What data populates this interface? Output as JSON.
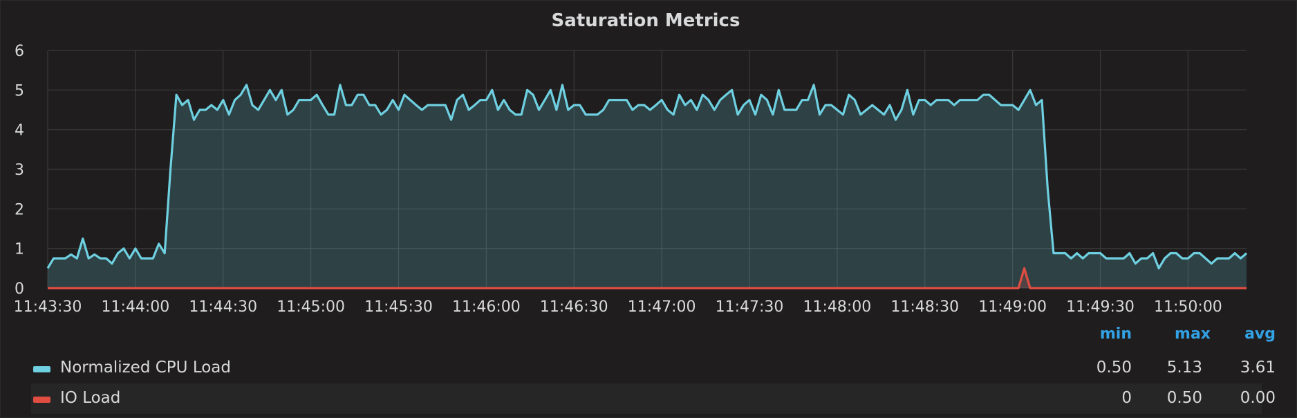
{
  "panel": {
    "title": "Saturation Metrics"
  },
  "legend": {
    "headers": {
      "min": "min",
      "max": "max",
      "avg": "avg"
    },
    "rows": [
      {
        "name": "Normalized CPU Load",
        "color": "#6ed0e0",
        "min": "0.50",
        "max": "5.13",
        "avg": "3.61"
      },
      {
        "name": "IO Load",
        "color": "#e24d42",
        "min": "0",
        "max": "0.50",
        "avg": "0.00"
      }
    ]
  },
  "chart_data": {
    "type": "area",
    "title": "Saturation Metrics",
    "xlabel": "",
    "ylabel": "",
    "ylim": [
      0,
      6
    ],
    "yticks": [
      "0",
      "1",
      "2",
      "3",
      "4",
      "5",
      "6"
    ],
    "xlim": [
      "11:43:30",
      "11:50:20"
    ],
    "xticks": [
      "11:43:30",
      "11:44:00",
      "11:44:30",
      "11:45:00",
      "11:45:30",
      "11:46:00",
      "11:46:30",
      "11:47:00",
      "11:47:30",
      "11:48:00",
      "11:48:30",
      "11:49:00",
      "11:49:30",
      "11:50:00"
    ],
    "grid": true,
    "legend_position": "bottom",
    "series": [
      {
        "name": "Normalized CPU Load",
        "color": "#6ed0e0",
        "fill": true,
        "points": [
          [
            "11:43:30",
            0.5
          ],
          [
            "11:43:32",
            0.75
          ],
          [
            "11:43:34",
            0.75
          ],
          [
            "11:43:36",
            0.75
          ],
          [
            "11:43:38",
            0.85
          ],
          [
            "11:43:40",
            0.75
          ],
          [
            "11:43:42",
            1.25
          ],
          [
            "11:43:44",
            0.75
          ],
          [
            "11:43:46",
            0.85
          ],
          [
            "11:43:48",
            0.75
          ],
          [
            "11:43:50",
            0.75
          ],
          [
            "11:43:52",
            0.62
          ],
          [
            "11:43:54",
            0.88
          ],
          [
            "11:43:56",
            1.0
          ],
          [
            "11:43:58",
            0.75
          ],
          [
            "11:44:00",
            1.0
          ],
          [
            "11:44:02",
            0.75
          ],
          [
            "11:44:04",
            0.75
          ],
          [
            "11:44:06",
            0.75
          ],
          [
            "11:44:08",
            1.12
          ],
          [
            "11:44:10",
            0.88
          ],
          [
            "11:44:12",
            3.0
          ],
          [
            "11:44:14",
            4.88
          ],
          [
            "11:44:16",
            4.62
          ],
          [
            "11:44:18",
            4.75
          ],
          [
            "11:44:20",
            4.25
          ],
          [
            "11:44:22",
            4.5
          ],
          [
            "11:44:24",
            4.5
          ],
          [
            "11:44:26",
            4.62
          ],
          [
            "11:44:28",
            4.5
          ],
          [
            "11:44:30",
            4.75
          ],
          [
            "11:44:32",
            4.38
          ],
          [
            "11:44:34",
            4.75
          ],
          [
            "11:44:36",
            4.88
          ],
          [
            "11:44:38",
            5.13
          ],
          [
            "11:44:40",
            4.62
          ],
          [
            "11:44:42",
            4.5
          ],
          [
            "11:44:44",
            4.75
          ],
          [
            "11:44:46",
            5.0
          ],
          [
            "11:44:48",
            4.75
          ],
          [
            "11:44:50",
            5.0
          ],
          [
            "11:44:52",
            4.38
          ],
          [
            "11:44:54",
            4.5
          ],
          [
            "11:44:56",
            4.75
          ],
          [
            "11:44:58",
            4.75
          ],
          [
            "11:45:00",
            4.75
          ],
          [
            "11:45:02",
            4.88
          ],
          [
            "11:45:04",
            4.62
          ],
          [
            "11:45:06",
            4.38
          ],
          [
            "11:45:08",
            4.38
          ],
          [
            "11:45:10",
            5.13
          ],
          [
            "11:45:12",
            4.62
          ],
          [
            "11:45:14",
            4.62
          ],
          [
            "11:45:16",
            4.88
          ],
          [
            "11:45:18",
            4.88
          ],
          [
            "11:45:20",
            4.62
          ],
          [
            "11:45:22",
            4.62
          ],
          [
            "11:45:24",
            4.38
          ],
          [
            "11:45:26",
            4.5
          ],
          [
            "11:45:28",
            4.75
          ],
          [
            "11:45:30",
            4.5
          ],
          [
            "11:45:32",
            4.88
          ],
          [
            "11:45:34",
            4.75
          ],
          [
            "11:45:36",
            4.62
          ],
          [
            "11:45:38",
            4.5
          ],
          [
            "11:45:40",
            4.62
          ],
          [
            "11:45:42",
            4.62
          ],
          [
            "11:45:44",
            4.62
          ],
          [
            "11:45:46",
            4.62
          ],
          [
            "11:45:48",
            4.25
          ],
          [
            "11:45:50",
            4.75
          ],
          [
            "11:45:52",
            4.88
          ],
          [
            "11:45:54",
            4.5
          ],
          [
            "11:45:56",
            4.62
          ],
          [
            "11:45:58",
            4.75
          ],
          [
            "11:46:00",
            4.75
          ],
          [
            "11:46:02",
            5.0
          ],
          [
            "11:46:04",
            4.5
          ],
          [
            "11:46:06",
            4.75
          ],
          [
            "11:46:08",
            4.5
          ],
          [
            "11:46:10",
            4.38
          ],
          [
            "11:46:12",
            4.38
          ],
          [
            "11:46:14",
            5.0
          ],
          [
            "11:46:16",
            4.88
          ],
          [
            "11:46:18",
            4.5
          ],
          [
            "11:46:20",
            4.75
          ],
          [
            "11:46:22",
            5.0
          ],
          [
            "11:46:24",
            4.5
          ],
          [
            "11:46:26",
            5.13
          ],
          [
            "11:46:28",
            4.5
          ],
          [
            "11:46:30",
            4.62
          ],
          [
            "11:46:32",
            4.62
          ],
          [
            "11:46:34",
            4.38
          ],
          [
            "11:46:36",
            4.38
          ],
          [
            "11:46:38",
            4.38
          ],
          [
            "11:46:40",
            4.5
          ],
          [
            "11:46:42",
            4.75
          ],
          [
            "11:46:44",
            4.75
          ],
          [
            "11:46:46",
            4.75
          ],
          [
            "11:46:48",
            4.75
          ],
          [
            "11:46:50",
            4.5
          ],
          [
            "11:46:52",
            4.62
          ],
          [
            "11:46:54",
            4.62
          ],
          [
            "11:46:56",
            4.5
          ],
          [
            "11:46:58",
            4.62
          ],
          [
            "11:47:00",
            4.75
          ],
          [
            "11:47:02",
            4.5
          ],
          [
            "11:47:04",
            4.38
          ],
          [
            "11:47:06",
            4.88
          ],
          [
            "11:47:08",
            4.62
          ],
          [
            "11:47:10",
            4.75
          ],
          [
            "11:47:12",
            4.5
          ],
          [
            "11:47:14",
            4.88
          ],
          [
            "11:47:16",
            4.75
          ],
          [
            "11:47:18",
            4.5
          ],
          [
            "11:47:20",
            4.75
          ],
          [
            "11:47:22",
            4.88
          ],
          [
            "11:47:24",
            5.0
          ],
          [
            "11:47:26",
            4.38
          ],
          [
            "11:47:28",
            4.62
          ],
          [
            "11:47:30",
            4.75
          ],
          [
            "11:47:32",
            4.38
          ],
          [
            "11:47:34",
            4.88
          ],
          [
            "11:47:36",
            4.75
          ],
          [
            "11:47:38",
            4.38
          ],
          [
            "11:47:40",
            5.0
          ],
          [
            "11:47:42",
            4.5
          ],
          [
            "11:47:44",
            4.5
          ],
          [
            "11:47:46",
            4.5
          ],
          [
            "11:47:48",
            4.75
          ],
          [
            "11:47:50",
            4.75
          ],
          [
            "11:47:52",
            5.13
          ],
          [
            "11:47:54",
            4.38
          ],
          [
            "11:47:56",
            4.62
          ],
          [
            "11:47:58",
            4.62
          ],
          [
            "11:48:00",
            4.5
          ],
          [
            "11:48:02",
            4.38
          ],
          [
            "11:48:04",
            4.88
          ],
          [
            "11:48:06",
            4.75
          ],
          [
            "11:48:08",
            4.38
          ],
          [
            "11:48:10",
            4.5
          ],
          [
            "11:48:12",
            4.62
          ],
          [
            "11:48:14",
            4.5
          ],
          [
            "11:48:16",
            4.38
          ],
          [
            "11:48:18",
            4.62
          ],
          [
            "11:48:20",
            4.25
          ],
          [
            "11:48:22",
            4.5
          ],
          [
            "11:48:24",
            5.0
          ],
          [
            "11:48:26",
            4.38
          ],
          [
            "11:48:28",
            4.75
          ],
          [
            "11:48:30",
            4.75
          ],
          [
            "11:48:32",
            4.62
          ],
          [
            "11:48:34",
            4.75
          ],
          [
            "11:48:36",
            4.75
          ],
          [
            "11:48:38",
            4.75
          ],
          [
            "11:48:40",
            4.62
          ],
          [
            "11:48:42",
            4.75
          ],
          [
            "11:48:44",
            4.75
          ],
          [
            "11:48:46",
            4.75
          ],
          [
            "11:48:48",
            4.75
          ],
          [
            "11:48:50",
            4.88
          ],
          [
            "11:48:52",
            4.88
          ],
          [
            "11:48:54",
            4.75
          ],
          [
            "11:48:56",
            4.62
          ],
          [
            "11:48:58",
            4.62
          ],
          [
            "11:49:00",
            4.62
          ],
          [
            "11:49:02",
            4.5
          ],
          [
            "11:49:04",
            4.75
          ],
          [
            "11:49:06",
            5.0
          ],
          [
            "11:49:08",
            4.62
          ],
          [
            "11:49:10",
            4.75
          ],
          [
            "11:49:12",
            2.5
          ],
          [
            "11:49:14",
            0.88
          ],
          [
            "11:49:16",
            0.88
          ],
          [
            "11:49:18",
            0.88
          ],
          [
            "11:49:20",
            0.75
          ],
          [
            "11:49:22",
            0.88
          ],
          [
            "11:49:24",
            0.75
          ],
          [
            "11:49:26",
            0.88
          ],
          [
            "11:49:28",
            0.88
          ],
          [
            "11:49:30",
            0.88
          ],
          [
            "11:49:32",
            0.75
          ],
          [
            "11:49:34",
            0.75
          ],
          [
            "11:49:36",
            0.75
          ],
          [
            "11:49:38",
            0.75
          ],
          [
            "11:49:40",
            0.88
          ],
          [
            "11:49:42",
            0.62
          ],
          [
            "11:49:44",
            0.75
          ],
          [
            "11:49:46",
            0.75
          ],
          [
            "11:49:48",
            0.88
          ],
          [
            "11:49:50",
            0.5
          ],
          [
            "11:49:52",
            0.75
          ],
          [
            "11:49:54",
            0.88
          ],
          [
            "11:49:56",
            0.88
          ],
          [
            "11:49:58",
            0.75
          ],
          [
            "11:50:00",
            0.75
          ],
          [
            "11:50:02",
            0.88
          ],
          [
            "11:50:04",
            0.88
          ],
          [
            "11:50:06",
            0.75
          ],
          [
            "11:50:08",
            0.62
          ],
          [
            "11:50:10",
            0.75
          ],
          [
            "11:50:12",
            0.75
          ],
          [
            "11:50:14",
            0.75
          ],
          [
            "11:50:16",
            0.88
          ],
          [
            "11:50:18",
            0.75
          ],
          [
            "11:50:20",
            0.88
          ]
        ]
      },
      {
        "name": "IO Load",
        "color": "#e24d42",
        "fill": true,
        "points": [
          [
            "11:43:30",
            0
          ],
          [
            "11:49:00",
            0
          ],
          [
            "11:49:02",
            0
          ],
          [
            "11:49:04",
            0.5
          ],
          [
            "11:49:06",
            0
          ],
          [
            "11:50:20",
            0
          ]
        ]
      }
    ]
  }
}
